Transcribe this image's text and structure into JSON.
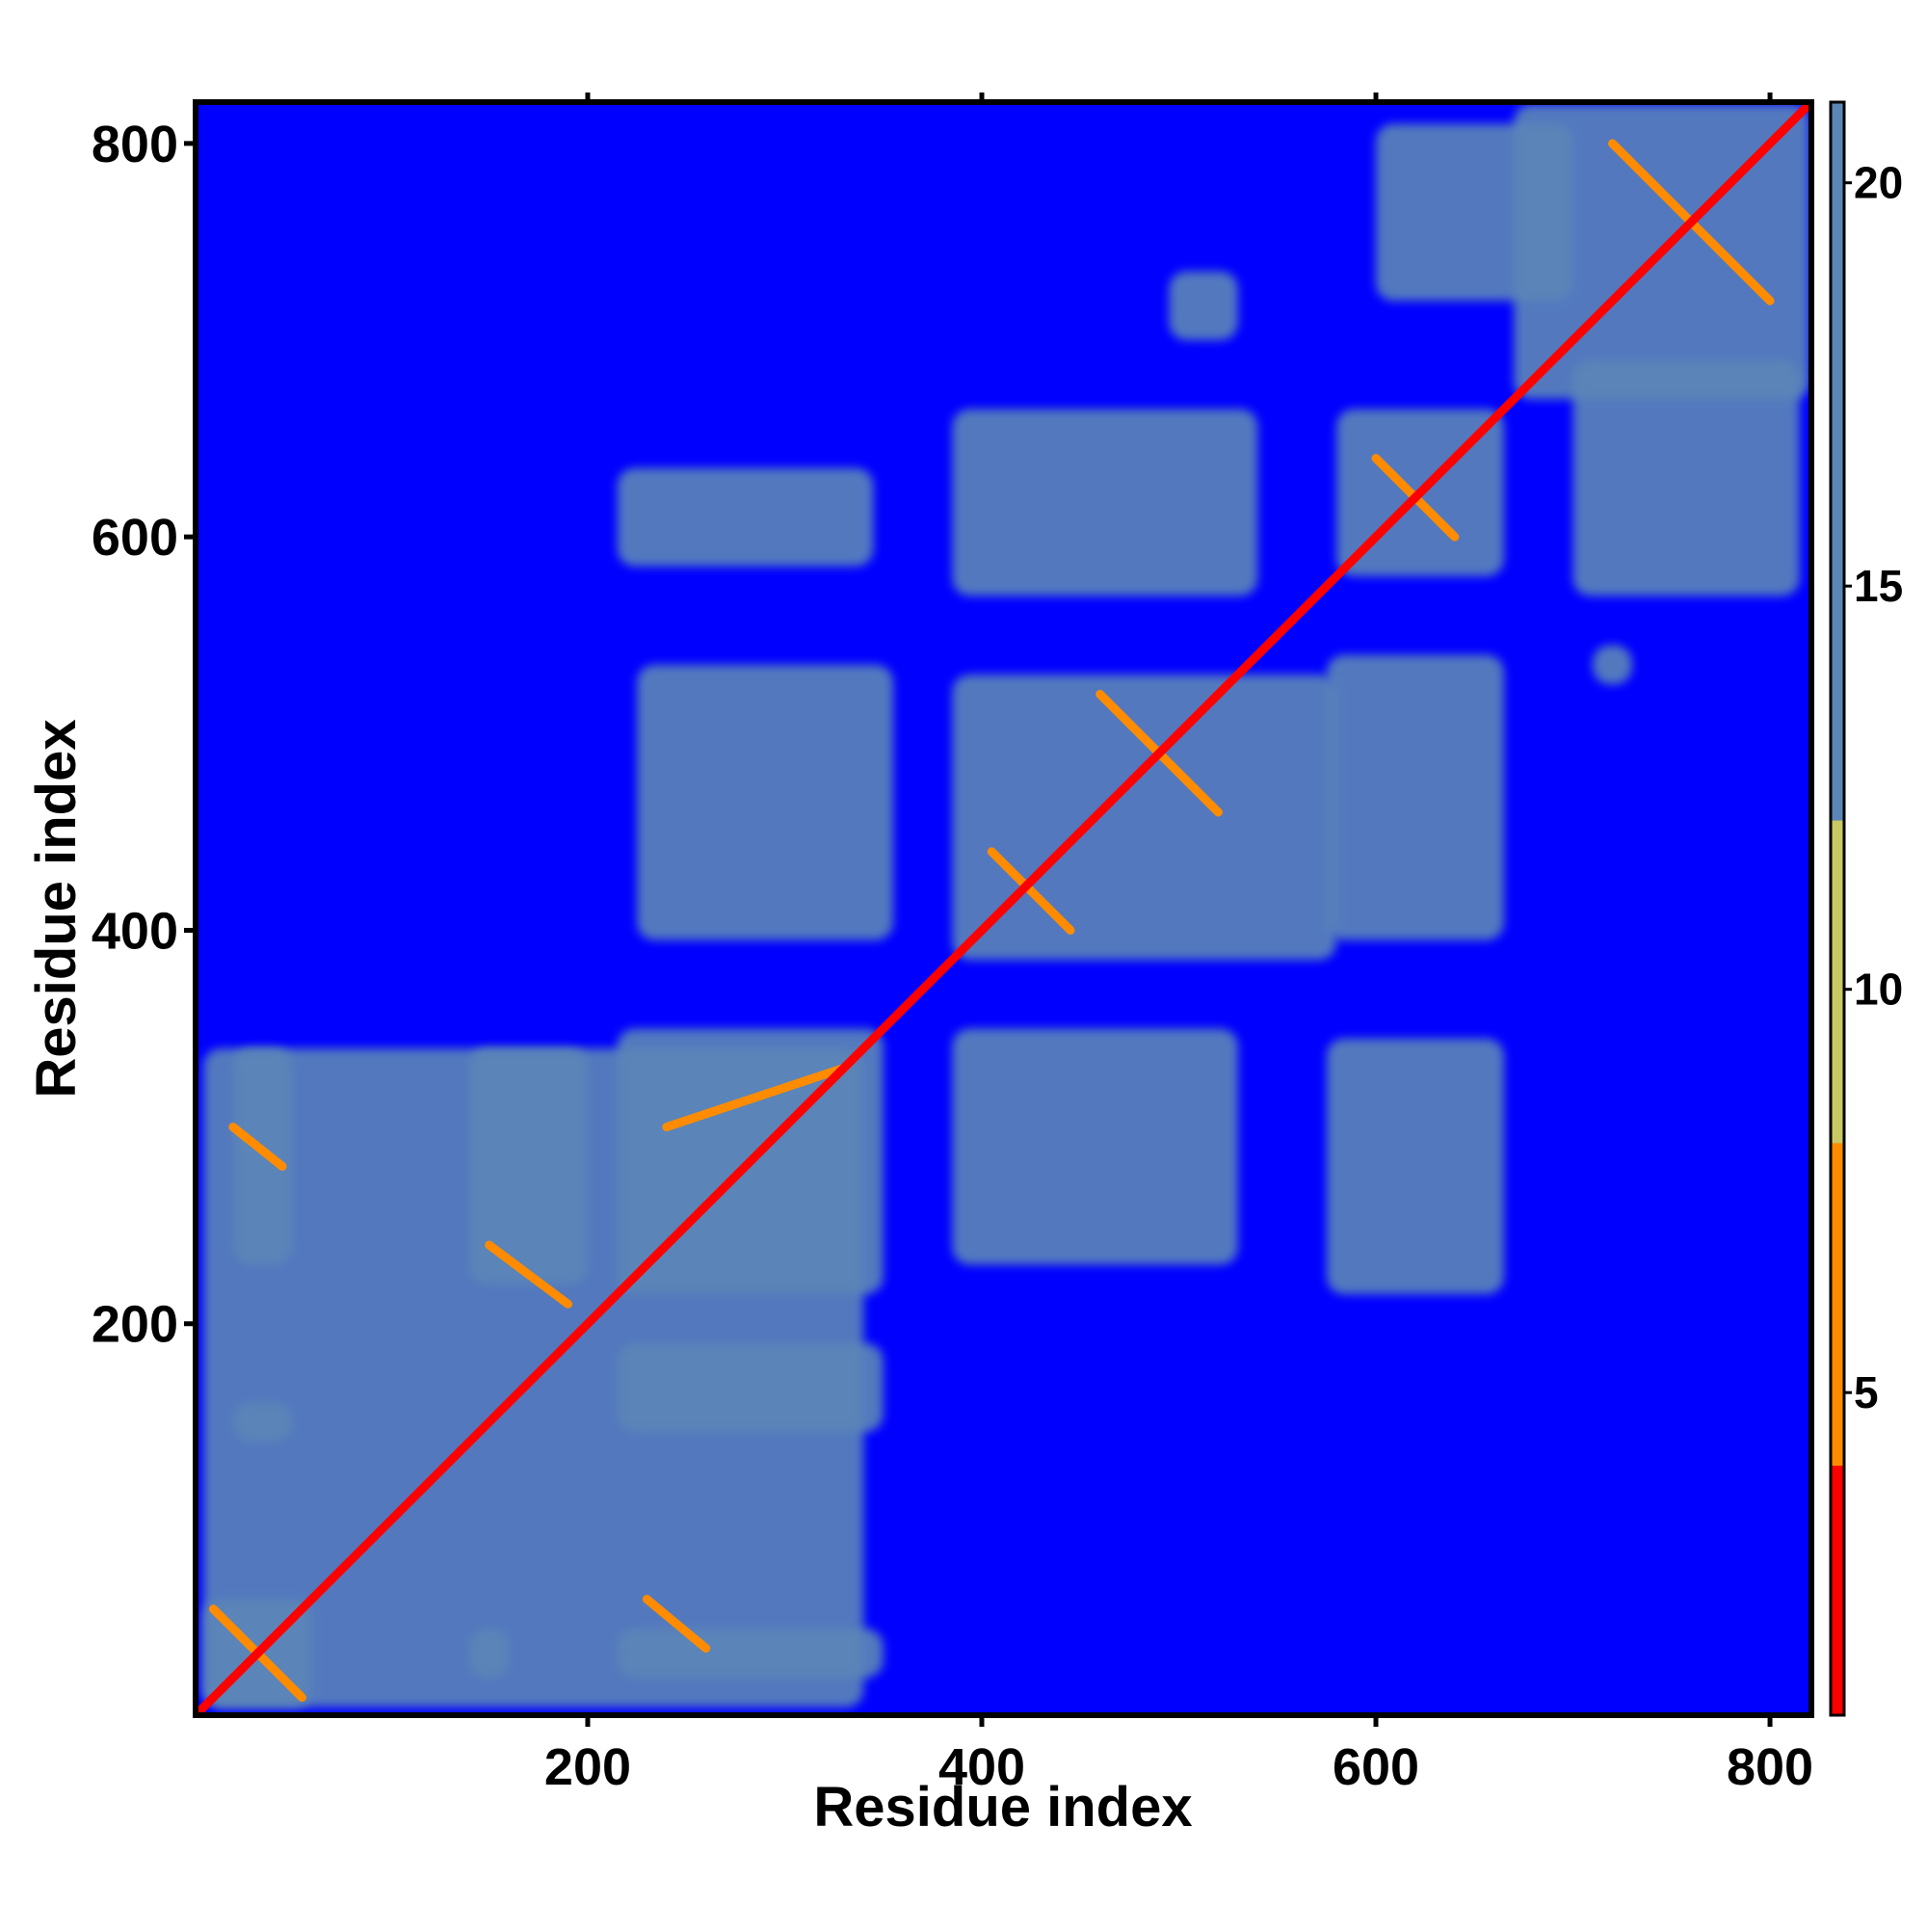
{
  "chart_data": {
    "type": "heatmap",
    "title": "",
    "xlabel": "Residue index",
    "ylabel": "Residue index",
    "xlim": [
      1,
      821
    ],
    "ylim": [
      1,
      821
    ],
    "x_ticks": [
      200,
      400,
      600,
      800
    ],
    "y_ticks": [
      200,
      400,
      600,
      800
    ],
    "colorbar": {
      "range": [
        1,
        21
      ],
      "ticks": [
        5,
        10,
        15,
        20
      ],
      "colors": {
        "diagonal": "#ff0000",
        "near": "#ff8c00",
        "mid": "#c8c864",
        "far": "#5b86b8",
        "background": "#0000ff"
      }
    },
    "diagonal_value": 1,
    "background_value": 21,
    "blocks": [
      {
        "x": [
          5,
          60
        ],
        "y": [
          5,
          60
        ],
        "value": 17
      },
      {
        "x": [
          5,
          340
        ],
        "y": [
          5,
          340
        ],
        "value": 20
      },
      {
        "x": [
          20,
          50
        ],
        "y": [
          230,
          340
        ],
        "value": 16
      },
      {
        "x": [
          20,
          50
        ],
        "y": [
          140,
          160
        ],
        "value": 16
      },
      {
        "x": [
          140,
          200
        ],
        "y": [
          220,
          340
        ],
        "value": 16
      },
      {
        "x": [
          140,
          160
        ],
        "y": [
          20,
          45
        ],
        "value": 16
      },
      {
        "x": [
          215,
          350
        ],
        "y": [
          20,
          45
        ],
        "value": 16
      },
      {
        "x": [
          215,
          350
        ],
        "y": [
          145,
          190
        ],
        "value": 16
      },
      {
        "x": [
          215,
          350
        ],
        "y": [
          215,
          350
        ],
        "value": 15
      },
      {
        "x": [
          225,
          355
        ],
        "y": [
          395,
          535
        ],
        "value": 16
      },
      {
        "x": [
          215,
          345
        ],
        "y": [
          585,
          635
        ],
        "value": 16
      },
      {
        "x": [
          385,
          530
        ],
        "y": [
          230,
          350
        ],
        "value": 16
      },
      {
        "x": [
          385,
          580
        ],
        "y": [
          385,
          530
        ],
        "value": 15
      },
      {
        "x": [
          385,
          540
        ],
        "y": [
          570,
          665
        ],
        "value": 16
      },
      {
        "x": [
          575,
          665
        ],
        "y": [
          215,
          345
        ],
        "value": 16
      },
      {
        "x": [
          575,
          665
        ],
        "y": [
          395,
          540
        ],
        "value": 16
      },
      {
        "x": [
          580,
          665
        ],
        "y": [
          580,
          665
        ],
        "value": 15
      },
      {
        "x": [
          495,
          530
        ],
        "y": [
          700,
          735
        ],
        "value": 17
      },
      {
        "x": [
          600,
          700
        ],
        "y": [
          720,
          810
        ],
        "value": 18
      },
      {
        "x": [
          670,
          820
        ],
        "y": [
          670,
          820
        ],
        "value": 15
      },
      {
        "x": [
          700,
          815
        ],
        "y": [
          570,
          690
        ],
        "value": 18
      },
      {
        "x": [
          710,
          730
        ],
        "y": [
          525,
          545
        ],
        "value": 16
      }
    ],
    "contact_segments": [
      {
        "from": [
          10,
          55
        ],
        "to": [
          55,
          10
        ],
        "value": 5
      },
      {
        "from": [
          20,
          300
        ],
        "to": [
          45,
          280
        ],
        "value": 6
      },
      {
        "from": [
          150,
          240
        ],
        "to": [
          190,
          210
        ],
        "value": 6
      },
      {
        "from": [
          230,
          60
        ],
        "to": [
          260,
          35
        ],
        "value": 6
      },
      {
        "from": [
          240,
          300
        ],
        "to": [
          330,
          330
        ],
        "value": 6
      },
      {
        "from": [
          405,
          440
        ],
        "to": [
          445,
          400
        ],
        "value": 6
      },
      {
        "from": [
          460,
          520
        ],
        "to": [
          520,
          460
        ],
        "value": 6
      },
      {
        "from": [
          600,
          640
        ],
        "to": [
          640,
          600
        ],
        "value": 6
      },
      {
        "from": [
          720,
          800
        ],
        "to": [
          800,
          720
        ],
        "value": 6
      }
    ]
  }
}
